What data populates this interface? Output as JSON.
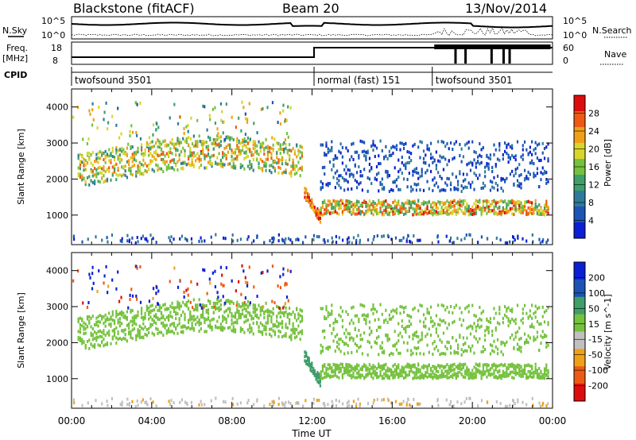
{
  "header": {
    "station": "Blackstone (fitACF)",
    "beam": "Beam 20",
    "date": "13/Nov/2014"
  },
  "strip_labels": {
    "nsky": "N.Sky",
    "nsearch": "N.Search",
    "nsky_ticks": [
      "10^5",
      "10^0"
    ],
    "nsearch_ticks": [
      "10^5",
      "10^0"
    ],
    "freq": "Freq.",
    "freq_unit": "[MHz]",
    "freq_ticks": [
      "18",
      "8"
    ],
    "nave": "Nave",
    "nave_ticks": [
      "60",
      "0"
    ],
    "cpid": "CPID"
  },
  "cpid_segments": [
    {
      "start_hour": 0,
      "label": "twofsound 3501"
    },
    {
      "start_hour": 12.1,
      "label": "normal (fast) 151"
    },
    {
      "start_hour": 18,
      "label": "twofsound 3501"
    }
  ],
  "x_axis": {
    "title": "Time UT",
    "range_hours": [
      0,
      24
    ],
    "ticks": [
      "00:00",
      "04:00",
      "08:00",
      "12:00",
      "16:00",
      "20:00",
      "00:00"
    ]
  },
  "chart_data": [
    {
      "type": "heatmap",
      "name": "power",
      "ylabel": "Slant Range [km]",
      "ylim": [
        180,
        4500
      ],
      "yticks": [
        1000,
        2000,
        3000,
        4000
      ],
      "colorbar": {
        "label": "Power [dB]",
        "range": [
          0,
          30
        ],
        "tick_labels": [
          "28",
          "24",
          "20",
          "16",
          "12",
          "8",
          "4"
        ],
        "colors": [
          "#0b1fd4",
          "#1b54b4",
          "#2f7a9a",
          "#3f9e6a",
          "#75c23e",
          "#d8d62a",
          "#f0a017",
          "#ee5a13",
          "#dd0d0d"
        ]
      },
      "description_bands": [
        {
          "t": [
            0.2,
            11.5
          ],
          "range_km": [
            2000,
            2900
          ],
          "power_db": [
            14,
            26
          ]
        },
        {
          "t": [
            11.6,
            12.3
          ],
          "range_km": [
            850,
            1300
          ],
          "power_db": [
            22,
            30
          ]
        },
        {
          "t": [
            12.4,
            24
          ],
          "range_km": [
            1000,
            1600
          ],
          "power_db": [
            10,
            28
          ]
        },
        {
          "t": [
            13,
            23.5
          ],
          "range_km": [
            1600,
            3200
          ],
          "power_db": [
            3,
            8
          ]
        }
      ]
    },
    {
      "type": "heatmap",
      "name": "velocity",
      "ylabel": "Slant Range [km]",
      "ylim": [
        180,
        4500
      ],
      "yticks": [
        1000,
        2000,
        3000,
        4000
      ],
      "colorbar": {
        "label": "Velocity [m s^-1]",
        "range": [
          -250,
          250
        ],
        "tick_labels": [
          "200",
          "100",
          "50",
          "15",
          "-15",
          "-50",
          "-100",
          "-200"
        ],
        "colors": [
          "#dd0d0d",
          "#ee5a13",
          "#f0a017",
          "#c0c0c0",
          "#75c23e",
          "#3f9e6a",
          "#1b54b4",
          "#0b1fd4"
        ]
      }
    }
  ]
}
